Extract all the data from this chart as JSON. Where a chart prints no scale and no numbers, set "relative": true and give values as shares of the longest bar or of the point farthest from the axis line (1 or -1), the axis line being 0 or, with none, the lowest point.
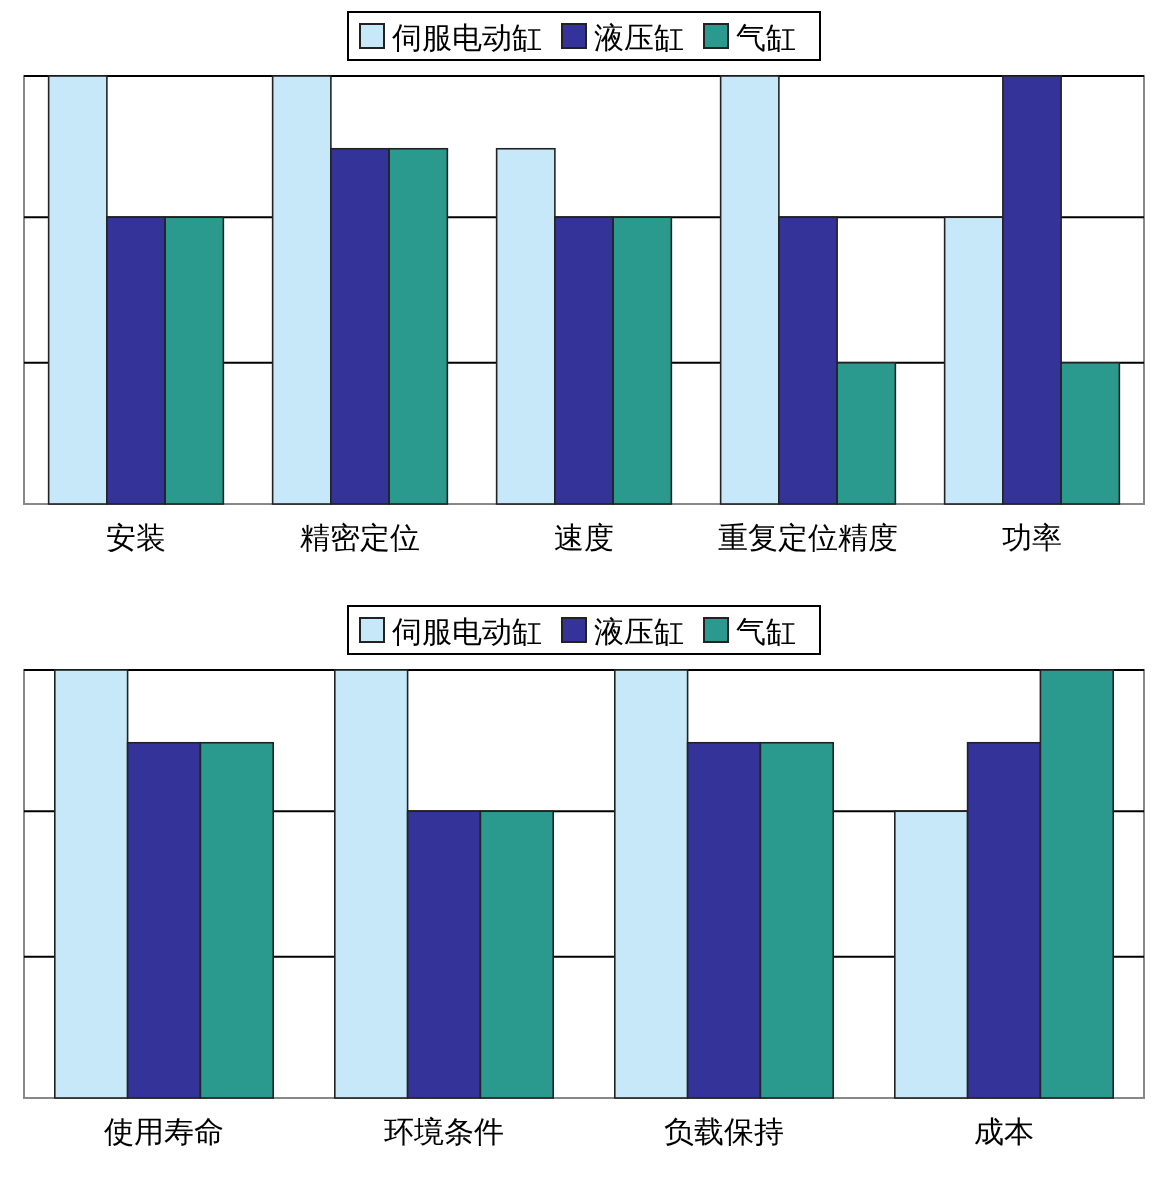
{
  "chart_data": [
    {
      "type": "bar",
      "relative": true,
      "legend": "top",
      "categories": [
        "安装",
        "精密定位",
        "速度",
        "重复定位精度",
        "功率"
      ],
      "ref_lines": [
        {
          "axis": "y",
          "value": 0.33,
          "color": "#000000"
        },
        {
          "axis": "y",
          "value": 0.67,
          "color": "#000000"
        },
        {
          "axis": "y",
          "value": 1,
          "color": "#000000"
        }
      ],
      "series": [
        {
          "name": "伺服电动缸",
          "color": "#c6e8f8",
          "values": [
            1,
            1,
            0.83,
            1,
            0.67
          ]
        },
        {
          "name": "液压缸",
          "color": "#33339a",
          "values": [
            0.67,
            0.83,
            0.67,
            0.67,
            1
          ]
        },
        {
          "name": "气缸",
          "color": "#2a9a8e",
          "values": [
            0.67,
            0.83,
            0.67,
            0.33,
            0.33
          ]
        }
      ]
    },
    {
      "type": "bar",
      "relative": true,
      "legend": "top",
      "categories": [
        "使用寿命",
        "环境条件",
        "负载保持",
        "成本"
      ],
      "ref_lines": [
        {
          "axis": "y",
          "value": 0.33,
          "color": "#000000"
        },
        {
          "axis": "y",
          "value": 0.67,
          "color": "#000000"
        },
        {
          "axis": "y",
          "value": 1,
          "color": "#000000"
        }
      ],
      "series": [
        {
          "name": "伺服电动缸",
          "color": "#c6e8f8",
          "values": [
            1,
            1,
            1,
            0.67
          ]
        },
        {
          "name": "液压缸",
          "color": "#33339a",
          "values": [
            0.83,
            0.67,
            0.83,
            0.83
          ]
        },
        {
          "name": "气缸",
          "color": "#2a9a8e",
          "values": [
            0.83,
            0.67,
            0.83,
            1
          ]
        }
      ]
    }
  ]
}
